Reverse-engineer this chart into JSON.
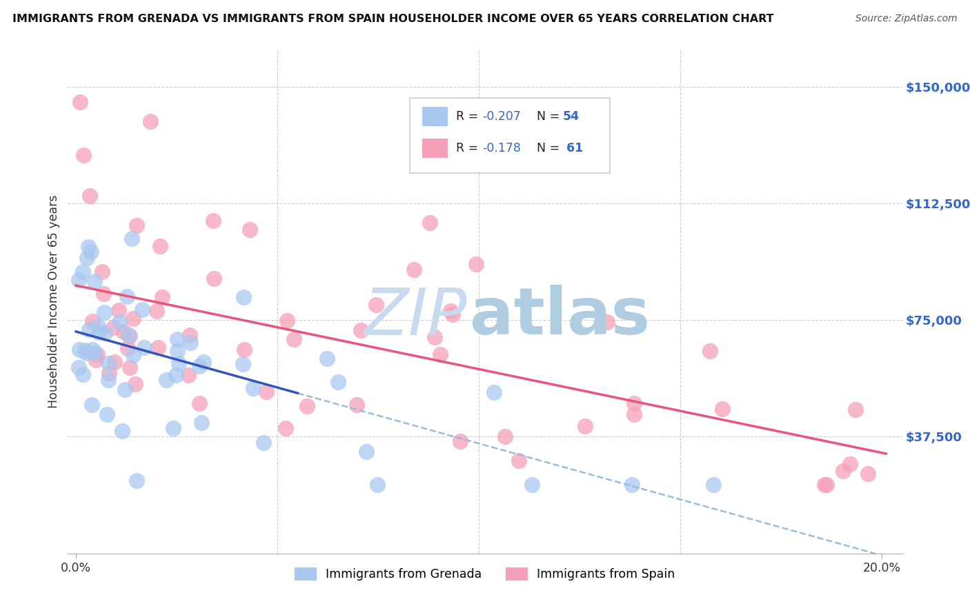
{
  "title": "IMMIGRANTS FROM GRENADA VS IMMIGRANTS FROM SPAIN HOUSEHOLDER INCOME OVER 65 YEARS CORRELATION CHART",
  "source": "Source: ZipAtlas.com",
  "ylabel": "Householder Income Over 65 years",
  "ytick_labels": [
    "$37,500",
    "$75,000",
    "$112,500",
    "$150,000"
  ],
  "ytick_values": [
    37500,
    75000,
    112500,
    150000
  ],
  "ylim": [
    0,
    162000
  ],
  "xlim": [
    -0.002,
    0.205
  ],
  "grenada_R": -0.207,
  "grenada_N": 54,
  "spain_R": -0.178,
  "spain_N": 61,
  "grenada_color": "#a8c8f0",
  "spain_color": "#f5a0b8",
  "grenada_line_color": "#3355bb",
  "spain_line_color": "#e8547a",
  "dash_color": "#99bbdd",
  "background_color": "#ffffff",
  "watermark_zip_color": "#c8daf0",
  "watermark_atlas_color": "#b0cce0"
}
